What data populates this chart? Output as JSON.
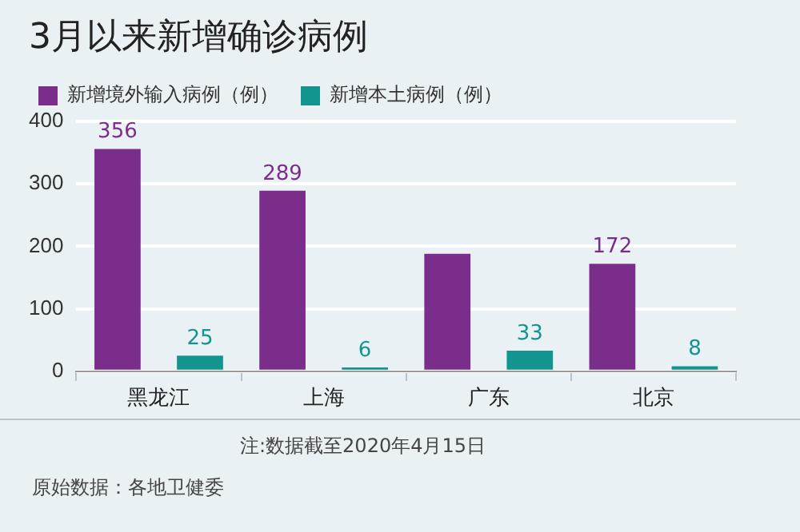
{
  "chart_data": {
    "type": "bar",
    "title": "3月以来新增确诊病例",
    "categories": [
      "黑龙江",
      "上海",
      "广东",
      "北京"
    ],
    "series": [
      {
        "name": "新增境外输入病例（例）",
        "color": "#7b2d8b",
        "values": [
          356,
          289,
          188,
          172
        ],
        "value_labels": [
          "356",
          "289",
          null,
          "172"
        ]
      },
      {
        "name": "新增本土病例（例）",
        "color": "#12958f",
        "values": [
          25,
          6,
          33,
          8
        ],
        "value_labels": [
          "25",
          "6",
          "33",
          "8"
        ]
      }
    ],
    "ylim": [
      0,
      400
    ],
    "yticks": [
      0,
      100,
      200,
      300,
      400
    ],
    "grid": "y",
    "legend": "top left",
    "annotations": [
      "注:数据截至2020年4月15日",
      "原始数据：各地卫健委"
    ]
  }
}
